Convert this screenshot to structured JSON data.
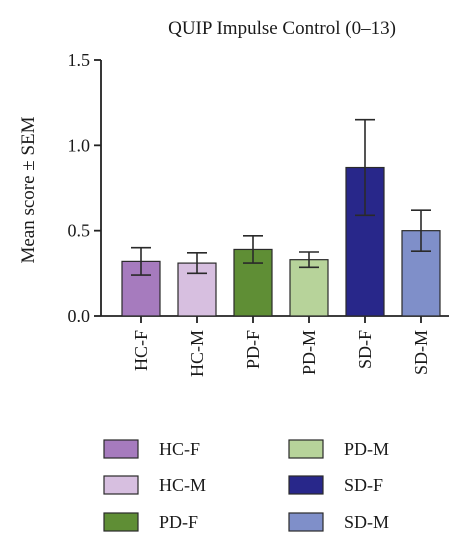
{
  "chart_data": {
    "type": "bar",
    "title": "QUIP Impulse Control (0–13)",
    "xlabel": "",
    "ylabel": "Mean score ± SEM",
    "ylim": [
      0,
      1.5
    ],
    "yticks": [
      "0.0",
      "0.5",
      "1.0",
      "1.5"
    ],
    "ytick_values": [
      0,
      0.5,
      1.0,
      1.5
    ],
    "grid": false,
    "legend_placement": "bottom",
    "categories": [
      "HC-F",
      "HC-M",
      "PD-F",
      "PD-M",
      "SD-F",
      "SD-M"
    ],
    "values": [
      0.32,
      0.31,
      0.39,
      0.33,
      0.87,
      0.5
    ],
    "errors": [
      0.08,
      0.06,
      0.08,
      0.045,
      0.28,
      0.12
    ],
    "colors": [
      "#a67bbe",
      "#d7bfe0",
      "#5f8e35",
      "#b7d39a",
      "#28278a",
      "#7f8fc9"
    ],
    "legend": [
      "HC-F",
      "HC-M",
      "PD-F",
      "PD-M",
      "SD-F",
      "SD-M"
    ]
  }
}
